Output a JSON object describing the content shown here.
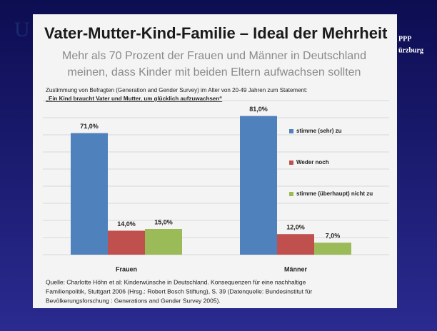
{
  "slide": {
    "title": "Vater-Mutter-Kind-Familie – Ideal der Mehrheit",
    "subtitle_lines": [
      "Mehr als 70 Prozent der Frauen und Männer in Deutschland",
      "meinen, dass Kinder mit beiden Eltern aufwachsen sollten"
    ],
    "note": "Zustimmung von Befragten (Generation and Gender Survey) im Alter von 20-49 Jahren zum Statement:",
    "statement": "„Ein Kind braucht Vater und Mutter, um glücklich aufzuwachsen“",
    "source_lines": [
      "Quelle: Charlotte Höhn et al: Kinderwünsche in Deutschland. Konsequenzen für eine nachhaltige",
      "Familienpolitik, Stuttgart 2006 (Hrsg.: Robert Bosch Stiftung), S. 39 (Datenquelle: Bundesinstitut für",
      "Bevölkerungsforschung : Generations and Gender Survey 2005)."
    ],
    "logo_left": "U",
    "logo_right_lines": [
      "PPP",
      "ürzburg"
    ]
  },
  "chart_data": {
    "type": "bar",
    "categories": [
      "Frauen",
      "Männer"
    ],
    "series": [
      {
        "name": "stimme (sehr) zu",
        "color": "#4f81bd",
        "values": [
          71,
          81
        ],
        "value_labels": [
          "71,0%",
          "81,0%"
        ]
      },
      {
        "name": "Weder noch",
        "color": "#c0504d",
        "values": [
          14,
          12
        ],
        "value_labels": [
          "14,0%",
          "12,0%"
        ]
      },
      {
        "name": "stimme (überhaupt) nicht zu",
        "color": "#9bbb59",
        "values": [
          15,
          7
        ],
        "value_labels": [
          "15,0%",
          "7,0%"
        ]
      }
    ],
    "ylim": [
      0,
      90
    ],
    "yticks": [
      0,
      10,
      20,
      30,
      40,
      50,
      60,
      70,
      80,
      90
    ],
    "grid": true,
    "legend": "right"
  }
}
